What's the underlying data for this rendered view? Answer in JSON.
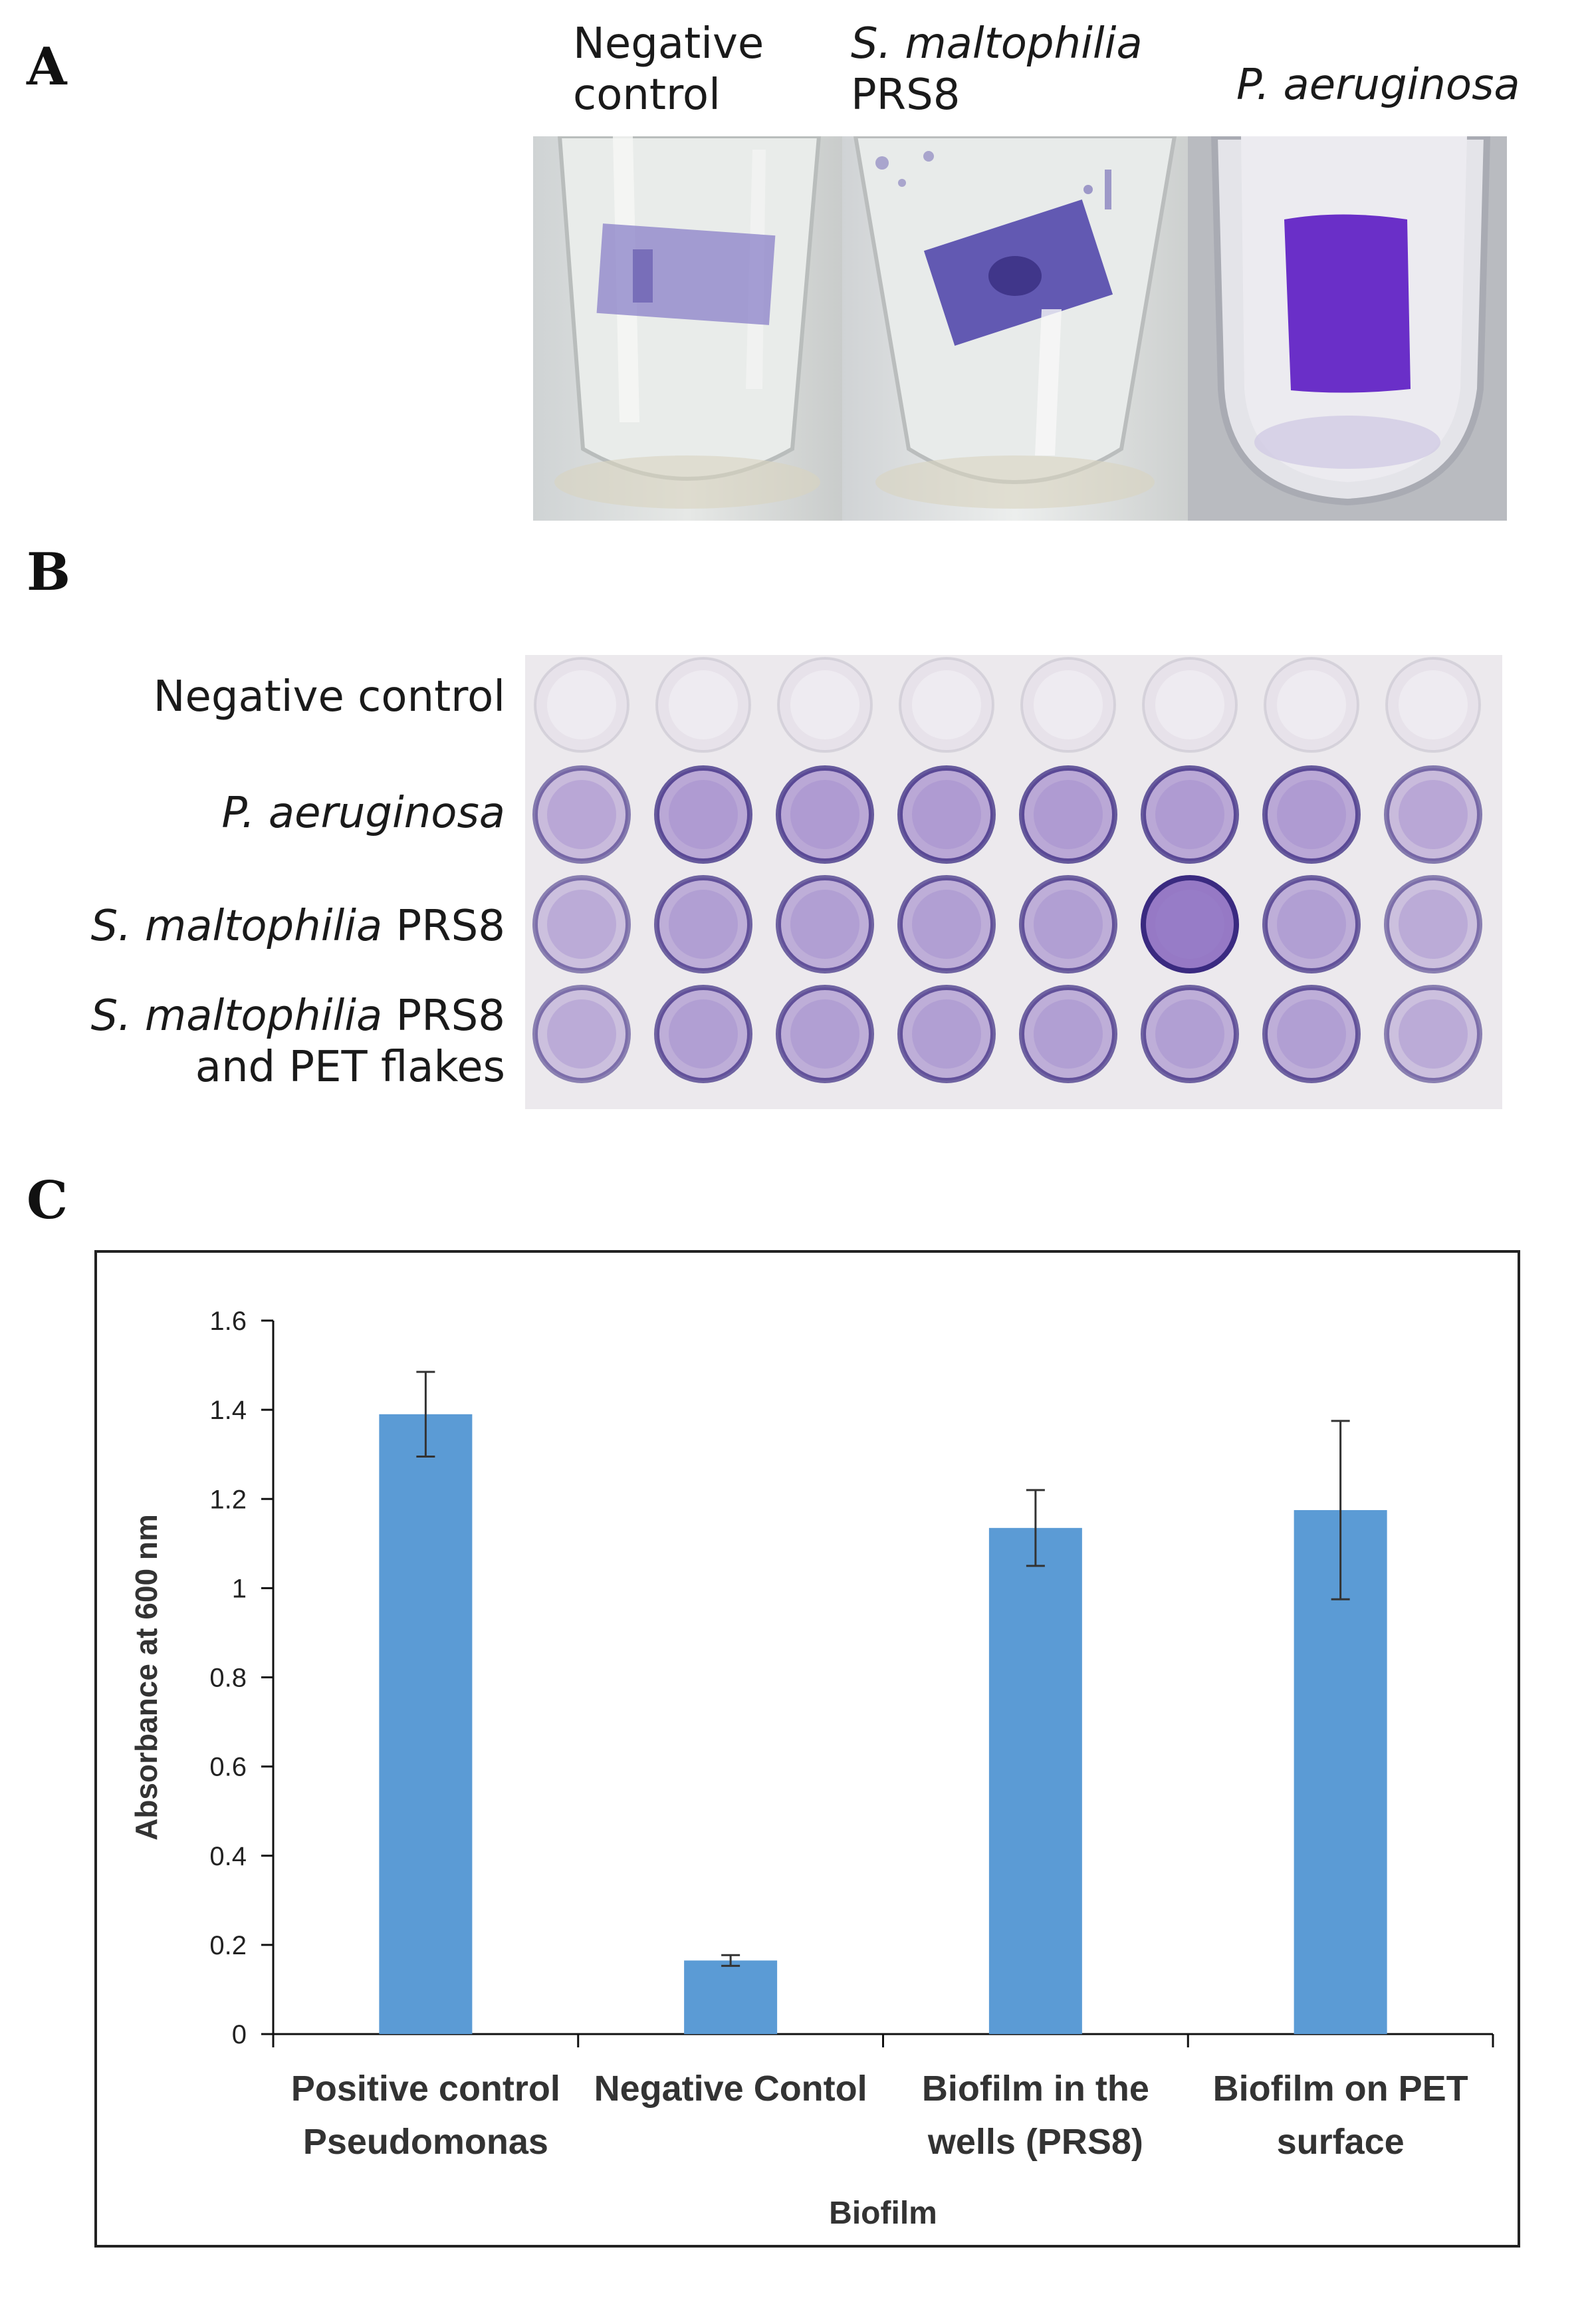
{
  "panels": {
    "a": {
      "letter": "A",
      "tubes": [
        {
          "line1": "Negative",
          "line2": "control",
          "italic": false,
          "strip_color": "#8a80c8"
        },
        {
          "line1": "S. maltophilia",
          "line2": "PRS8",
          "italic_line1": true,
          "strip_color": "#4a40a8"
        },
        {
          "line1": "P. aeruginosa",
          "line2": "",
          "italic_line1": true,
          "strip_color": "#6a2fc8"
        }
      ]
    },
    "b": {
      "letter": "B",
      "rows": [
        {
          "label_italic": "",
          "label_plain": "Negative control",
          "label_line2": "",
          "intensity": 0.05
        },
        {
          "label_italic": "P. aeruginosa",
          "label_plain": "",
          "label_line2": "",
          "intensity": 0.55
        },
        {
          "label_italic": "S. maltophilia",
          "label_plain": " PRS8",
          "label_line2": "",
          "intensity": 0.5
        },
        {
          "label_italic": "S. maltophilia",
          "label_plain": " PRS8",
          "label_line2": "and PET flakes",
          "intensity": 0.5
        }
      ],
      "well_color": "#7a55b8"
    },
    "c": {
      "letter": "C"
    }
  },
  "chart_data": {
    "type": "bar",
    "categories": [
      [
        "Positive control",
        "Pseudomonas"
      ],
      [
        "Negative Contol"
      ],
      [
        "Biofilm in the",
        "wells (PRS8)"
      ],
      [
        "Biofilm on PET",
        "surface"
      ]
    ],
    "values": [
      1.39,
      0.165,
      1.135,
      1.175
    ],
    "errors": [
      0.095,
      0.012,
      0.085,
      0.2
    ],
    "xlabel": "Biofilm",
    "ylabel": "Absorbance at 600 nm",
    "ylim": [
      0,
      1.6
    ],
    "yticks": [
      0,
      0.2,
      0.4,
      0.6,
      0.8,
      1,
      1.2,
      1.4,
      1.6
    ],
    "ytick_labels": [
      "0",
      "0.2",
      "0.4",
      "0.6",
      "0.8",
      "1",
      "1.2",
      "1.4",
      "1.6"
    ],
    "bar_color": "#5b9bd5",
    "grid": false,
    "legend": "none"
  }
}
